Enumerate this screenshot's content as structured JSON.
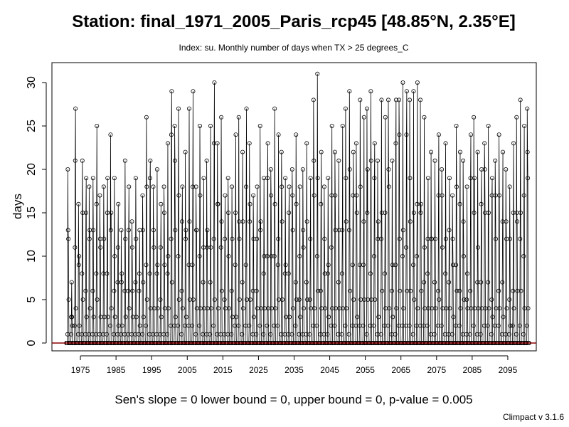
{
  "chart_data": {
    "type": "line",
    "title": "Station: final_1971_2005_Paris_rcp45 [48.85°N, 2.35°E]",
    "subtitle": "Index: su. Monthly number of days when TX > 25 degrees_C",
    "xlabel": "",
    "ylabel": "days",
    "xlim": [
      1967.0,
      2103.0
    ],
    "ylim": [
      0,
      30
    ],
    "yticks": [
      0,
      5,
      10,
      15,
      20,
      25,
      30
    ],
    "xticks": [
      1975,
      1985,
      1995,
      2005,
      2015,
      2025,
      2035,
      2045,
      2055,
      2065,
      2075,
      2085,
      2095
    ],
    "grid": false,
    "trend_line_color": "#8b0000",
    "line_color": "#000000",
    "marker": "open-circle",
    "series": [
      {
        "start_year": 1971,
        "end_year": 2100,
        "peak_months": [
          6,
          7,
          8
        ],
        "annual_peaks": [
          20,
          7,
          27,
          16,
          21,
          19,
          18,
          19,
          25,
          17,
          18,
          19,
          24,
          19,
          16,
          13,
          21,
          18,
          14,
          19,
          13,
          17,
          26,
          21,
          18,
          20,
          16,
          18,
          23,
          29,
          25,
          27,
          18,
          22,
          27,
          29,
          18,
          25,
          19,
          21,
          25,
          30,
          23,
          26,
          17,
          19,
          18,
          24,
          26,
          22,
          27,
          23,
          17,
          18,
          25,
          19,
          23,
          20,
          27,
          24,
          22,
          19,
          18,
          20,
          24,
          18,
          20,
          23,
          19,
          28,
          31,
          22,
          18,
          19,
          25,
          22,
          21,
          25,
          27,
          29,
          22,
          23,
          28,
          26,
          27,
          29,
          23,
          21,
          28,
          26,
          28,
          21,
          28,
          28,
          30,
          29,
          28,
          29,
          30,
          28,
          26,
          19,
          22,
          21,
          24,
          20,
          23,
          19,
          17,
          25,
          22,
          21,
          18,
          24,
          26,
          22,
          20,
          23,
          25,
          19,
          21,
          24,
          22,
          20,
          18,
          23,
          26,
          28,
          25,
          27
        ]
      }
    ]
  },
  "footer": {
    "sens_slope": "Sen's slope = 0   lower bound = 0,   upper bound = 0,   p-value = 0.005",
    "credit": "Climpact v 3.1.6"
  }
}
